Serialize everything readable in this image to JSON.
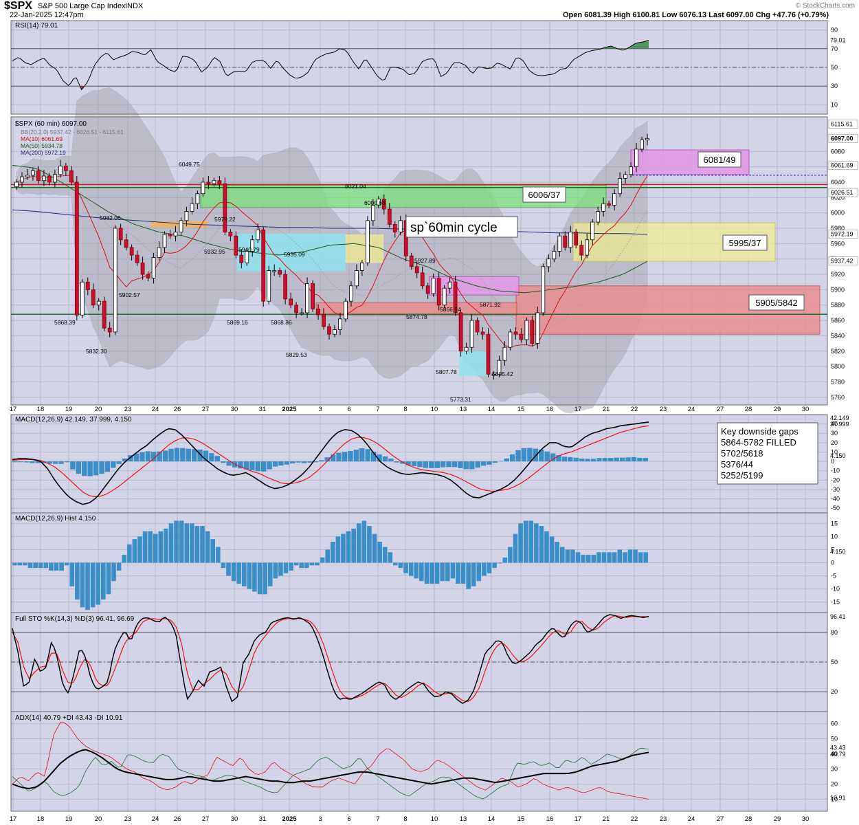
{
  "header": {
    "symbol": "$SPX",
    "name": "S&P 500 Large Cap Index",
    "exchange": "INDX",
    "date": "22-Jan-2025 12:47pm",
    "quote": "Open 6081.39  High 6100.81  Low 6076.13  Last 6097.00  Chg +47.76 (+0.79%)",
    "watermark": "© StockCharts.com"
  },
  "x_axis": {
    "labels": [
      "17",
      "18",
      "19",
      "20",
      "23",
      "24",
      "26",
      "27",
      "30",
      "31",
      "2025",
      "3",
      "6",
      "7",
      "8",
      "10",
      "13",
      "14",
      "15",
      "16",
      "17",
      "21",
      "22",
      "23",
      "24",
      "27",
      "28",
      "29",
      "30"
    ]
  },
  "annotations": {
    "cycle": "sp`60min cycle",
    "gap_note": "Key downside gaps\n5864-5782 FILLED\n5702/5618\n5376/44\n5252/5199"
  },
  "colors": {
    "panel_bg": "#d4d4e8",
    "up_candle": "#ffffff",
    "down_candle": "#c8102e",
    "bb_fill": "#a0a0a8",
    "green_zone": "#7de07d",
    "yellow_zone": "#f2ee8e",
    "red_zone": "#ec8c8c",
    "magenta_zone": "#e29ae6",
    "cyan_zone": "#8fe3ee",
    "orange_zone": "#f2b25a",
    "hist_blue": "#3b8fc9",
    "macd_signal": "#ee1111",
    "adx_plus": "#1a6b2a"
  },
  "chart_data": [
    {
      "type": "line",
      "title": "RSI(14) 79.01",
      "ylim": [
        0,
        100
      ],
      "y_ticks": [
        10,
        30,
        50,
        70,
        90
      ],
      "last_label": "79.01",
      "values": [
        57,
        61,
        55,
        53,
        57,
        60,
        52,
        48,
        36,
        30,
        41,
        26,
        35,
        52,
        61,
        66,
        58,
        61,
        63,
        67,
        66,
        63,
        69,
        56,
        52,
        47,
        45,
        62,
        61,
        57,
        45,
        50,
        61,
        56,
        40,
        45,
        46,
        45,
        55,
        58,
        57,
        49,
        58,
        49,
        42,
        38,
        40,
        45,
        58,
        62,
        65,
        66,
        70,
        68,
        57,
        48,
        60,
        50,
        40,
        35,
        50,
        50,
        48,
        42,
        44,
        56,
        59,
        59,
        40,
        44,
        55,
        55,
        52,
        43,
        51,
        49,
        49,
        55,
        52,
        48,
        61,
        58,
        47,
        42,
        41,
        42,
        43,
        48,
        49,
        58,
        62,
        66,
        68,
        69,
        71,
        73,
        70,
        68,
        72,
        76,
        77,
        79
      ]
    },
    {
      "type": "candlestick",
      "title": "$SPX (60 min) 6097.00",
      "legend": [
        "BB(20,2.0) 5937.42 - 6026.51 - 6115.61",
        "MA(10) 6061.69",
        "MA(50) 5934.78",
        "MA(200) 5972.19"
      ],
      "ylim": [
        5750,
        6125
      ],
      "y_ticks": [
        5760,
        5780,
        5800,
        5820,
        5840,
        5860,
        5880,
        5900,
        5920,
        5940,
        5960,
        5980,
        6000,
        6020,
        6040,
        6060,
        6080
      ],
      "right_labels": [
        "6115.61",
        "6097.00",
        "6081/49",
        "6061.69",
        "6026.51",
        "5972.19",
        "5937.42"
      ],
      "peak_labels": [
        "6049.75",
        "5982.06",
        "5979.22",
        "5940.79",
        "5935.09",
        "6021.04",
        "6000.68",
        "5927.89",
        "5871.92"
      ],
      "trough_labels": [
        "5868.39",
        "5832.30",
        "5902.57",
        "5932.95",
        "5869.16",
        "5868.86",
        "5829.53",
        "5874.78",
        "5866.54",
        "5807.78",
        "5773.31",
        "5805.42"
      ],
      "zone_labels": [
        "6006/37",
        "5995/37",
        "5905/5842",
        "6081/49"
      ],
      "close": [
        6040,
        6047,
        6049,
        6055,
        6042,
        6048,
        6040,
        6050,
        6061,
        6055,
        6040,
        5867,
        5910,
        5900,
        5880,
        5885,
        5850,
        5845,
        5980,
        5965,
        5955,
        5945,
        5935,
        5920,
        5915,
        5942,
        5955,
        5972,
        5970,
        5975,
        5990,
        6002,
        6012,
        6025,
        6040,
        6038,
        6042,
        6038,
        5975,
        5970,
        5945,
        5935,
        5950,
        5965,
        5978,
        5885,
        5925,
        5925,
        5920,
        5888,
        5880,
        5870,
        5870,
        5908,
        5875,
        5868,
        5852,
        5842,
        5848,
        5862,
        5885,
        5905,
        5925,
        5935,
        5990,
        6010,
        6018,
        6005,
        5985,
        5975,
        5990,
        5944,
        5930,
        5922,
        5905,
        5895,
        5915,
        5880,
        5902,
        5910,
        5870,
        5820,
        5825,
        5860,
        5845,
        5842,
        5790,
        5790,
        5808,
        5825,
        5845,
        5842,
        5835,
        5860,
        5830,
        5870,
        5930,
        5940,
        5950,
        5970,
        5955,
        5975,
        5958,
        5945,
        5965,
        5988,
        6002,
        6012,
        6010,
        6025,
        6045,
        6050,
        6060,
        6083,
        6095,
        6097
      ]
    },
    {
      "type": "line",
      "title": "MACD(12,26,9) 42.149, 37.999, 4.150",
      "ylim": [
        -55,
        50
      ],
      "y_ticks": [
        -50,
        -40,
        -30,
        -20,
        -10,
        0,
        10,
        20,
        30,
        40
      ],
      "right_labels": [
        "42.149",
        "37.999",
        "4.150"
      ],
      "series": [
        {
          "name": "MACD(12,26,9)",
          "values": [
            2,
            3,
            3,
            2,
            0,
            -8,
            -20,
            -30,
            -38,
            -43,
            -46,
            -44,
            -38,
            -28,
            -18,
            -8,
            0,
            6,
            12,
            17,
            24,
            30,
            35,
            34,
            28,
            20,
            12,
            4,
            -2,
            -8,
            -12,
            -15,
            -14,
            -12,
            -16,
            -21,
            -26,
            -29,
            -28,
            -25,
            -20,
            -14,
            -6,
            4,
            14,
            24,
            31,
            34,
            33,
            28,
            20,
            10,
            0,
            -6,
            -10,
            -13,
            -14,
            -13,
            -12,
            -13,
            -14,
            -16,
            -20,
            -26,
            -33,
            -38,
            -39,
            -36,
            -33,
            -30,
            -26,
            -20,
            -12,
            -3,
            6,
            14,
            20,
            20,
            16,
            15,
            20,
            26,
            30,
            32,
            35,
            36,
            38,
            39,
            40,
            41,
            42
          ]
        },
        {
          "name": "signal",
          "values": [
            1,
            2,
            2,
            2,
            1,
            -2,
            -6,
            -12,
            -19,
            -26,
            -33,
            -37,
            -38,
            -36,
            -32,
            -27,
            -21,
            -15,
            -9,
            -3,
            3,
            10,
            17,
            22,
            25,
            25,
            23,
            19,
            14,
            9,
            4,
            -1,
            -5,
            -8,
            -11,
            -13,
            -17,
            -20,
            -23,
            -24,
            -23,
            -21,
            -17,
            -11,
            -4,
            4,
            12,
            19,
            24,
            26,
            25,
            22,
            17,
            11,
            5,
            0,
            -4,
            -7,
            -9,
            -10,
            -11,
            -12,
            -14,
            -17,
            -21,
            -25,
            -29,
            -31,
            -32,
            -31,
            -30,
            -27,
            -23,
            -18,
            -12,
            -6,
            0,
            5,
            8,
            10,
            13,
            16,
            19,
            22,
            25,
            28,
            31,
            33,
            35,
            37,
            38
          ]
        }
      ]
    },
    {
      "type": "bar",
      "title": "MACD(12,26,9) Hist 4.150",
      "ylim": [
        -19,
        19
      ],
      "y_ticks": [
        -15,
        -10,
        -5,
        0,
        5,
        10,
        15
      ],
      "last_label": "4.150",
      "values": [
        -1,
        -1,
        -1,
        -2,
        -2,
        -2,
        -2,
        -3,
        -3,
        -3,
        -1,
        -9,
        -14,
        -17,
        -18,
        -17,
        -16,
        -14,
        -12,
        -7,
        -3,
        3,
        7,
        9,
        10,
        12,
        12,
        11,
        12,
        13,
        15,
        16,
        16,
        15,
        15,
        14,
        14,
        12,
        9,
        6,
        -2,
        -5,
        -7,
        -8,
        -9,
        -10,
        -11,
        -12,
        -12,
        -9,
        -6,
        -5,
        -4,
        -3,
        -1,
        -2,
        -2,
        -1,
        -1,
        2,
        5,
        8,
        10,
        11,
        12,
        13,
        15,
        16,
        14,
        11,
        8,
        6,
        4,
        -1,
        -2,
        -4,
        -5,
        -6,
        -7,
        -8,
        -8,
        -8,
        -7,
        -7,
        -6,
        -8,
        -8,
        -10,
        -9,
        -7,
        -5,
        -4,
        -2,
        0,
        2,
        6,
        11,
        15,
        16,
        16,
        15,
        14,
        12,
        10,
        8,
        6,
        5,
        5,
        4,
        3,
        3,
        3,
        4,
        4,
        4,
        4,
        5,
        4,
        5,
        5,
        4,
        4
      ]
    },
    {
      "type": "line",
      "title": "Full STO %K(14,3) %D(3) 96.41, 96.69",
      "ylim": [
        0,
        100
      ],
      "y_ticks": [
        20,
        50,
        80
      ],
      "right_labels": [
        "96.41"
      ],
      "series": [
        {
          "name": "%K(14,3)",
          "values": [
            84,
            60,
            25,
            30,
            54,
            40,
            45,
            72,
            54,
            26,
            18,
            40,
            65,
            55,
            32,
            22,
            25,
            30,
            60,
            73,
            82,
            70,
            87,
            94,
            95,
            92,
            90,
            96,
            91,
            80,
            45,
            12,
            20,
            32,
            25,
            40,
            42,
            45,
            25,
            10,
            15,
            50,
            58,
            72,
            78,
            80,
            90,
            92,
            94,
            95,
            93,
            95,
            92,
            88,
            76,
            60,
            40,
            22,
            12,
            14,
            12,
            15,
            18,
            22,
            26,
            30,
            28,
            17,
            12,
            16,
            22,
            26,
            30,
            28,
            20,
            15,
            16,
            20,
            18,
            12,
            8,
            12,
            22,
            40,
            60,
            65,
            72,
            70,
            56,
            48,
            50,
            55,
            60,
            68,
            72,
            80,
            85,
            78,
            74,
            86,
            92,
            90,
            80,
            82,
            88,
            95,
            98,
            97,
            94,
            96,
            97,
            96,
            95,
            96
          ]
        },
        {
          "name": "%D(3)",
          "values": [
            80,
            70,
            45,
            33,
            40,
            45,
            46,
            60,
            58,
            40,
            28,
            30,
            45,
            54,
            45,
            30,
            26,
            26,
            40,
            55,
            70,
            76,
            80,
            90,
            93,
            94,
            93,
            94,
            93,
            87,
            70,
            40,
            22,
            22,
            28,
            32,
            38,
            42,
            38,
            25,
            18,
            25,
            42,
            60,
            70,
            77,
            84,
            90,
            93,
            94,
            94,
            94,
            93,
            91,
            84,
            72,
            55,
            38,
            22,
            15,
            13,
            14,
            16,
            19,
            23,
            27,
            29,
            24,
            17,
            14,
            17,
            21,
            26,
            29,
            25,
            20,
            17,
            18,
            19,
            15,
            11,
            10,
            15,
            25,
            42,
            57,
            66,
            70,
            64,
            56,
            50,
            51,
            55,
            61,
            67,
            74,
            80,
            82,
            78,
            79,
            88,
            92,
            86,
            82,
            84,
            90,
            94,
            97,
            96,
            95,
            96,
            96,
            96,
            96
          ]
        }
      ]
    },
    {
      "type": "line",
      "title": "ADX(14) 40.79 +DI 43.43 -DI 10.91",
      "ylim": [
        2,
        68
      ],
      "y_ticks": [
        10,
        20,
        30,
        40,
        50,
        60
      ],
      "right_labels": [
        "43.43",
        "40.79",
        "10.91"
      ],
      "series": [
        {
          "name": "ADX(14)",
          "values": [
            20,
            18,
            17,
            18,
            22,
            28,
            34,
            38,
            41,
            43,
            41,
            38,
            34,
            30,
            28,
            27,
            26,
            25,
            24,
            23,
            23,
            24,
            25,
            24,
            23,
            22,
            22,
            23,
            24,
            25,
            24,
            23,
            22,
            22,
            21,
            21,
            22,
            22,
            23,
            24,
            25,
            26,
            27,
            28,
            28,
            27,
            26,
            25,
            24,
            23,
            22,
            21,
            20,
            21,
            22,
            23,
            24,
            24,
            23,
            22,
            21,
            22,
            23,
            24,
            25,
            26,
            27,
            27,
            27,
            27,
            28,
            30,
            32,
            33,
            34,
            35,
            37,
            39,
            40,
            41
          ]
        },
        {
          "name": "+DI",
          "values": [
            25,
            20,
            15,
            18,
            22,
            15,
            12,
            14,
            18,
            30,
            38,
            32,
            35,
            30,
            40,
            38,
            35,
            34,
            40,
            38,
            30,
            28,
            26,
            25,
            22,
            24,
            26,
            25,
            22,
            20,
            18,
            15,
            14,
            20,
            26,
            28,
            30,
            36,
            38,
            34,
            30,
            32,
            38,
            30,
            26,
            22,
            18,
            14,
            12,
            16,
            20,
            22,
            25,
            24,
            20,
            16,
            12,
            10,
            14,
            18,
            20,
            34,
            33,
            35,
            32,
            34,
            30,
            36,
            34,
            38,
            33,
            36,
            40,
            38,
            36,
            40,
            44,
            43
          ]
        },
        {
          "name": "-DI",
          "values": [
            20,
            25,
            22,
            28,
            25,
            52,
            62,
            58,
            50,
            45,
            42,
            40,
            38,
            34,
            30,
            28,
            24,
            22,
            18,
            16,
            18,
            22,
            20,
            24,
            26,
            38,
            35,
            32,
            38,
            30,
            26,
            28,
            35,
            30,
            27,
            24,
            20,
            18,
            18,
            22,
            24,
            22,
            20,
            28,
            32,
            40,
            44,
            40,
            36,
            30,
            28,
            30,
            36,
            34,
            30,
            26,
            22,
            18,
            16,
            20,
            24,
            22,
            18,
            20,
            24,
            20,
            18,
            16,
            18,
            16,
            14,
            16,
            18,
            15,
            14,
            13,
            12,
            11,
            10
          ]
        }
      ]
    }
  ]
}
